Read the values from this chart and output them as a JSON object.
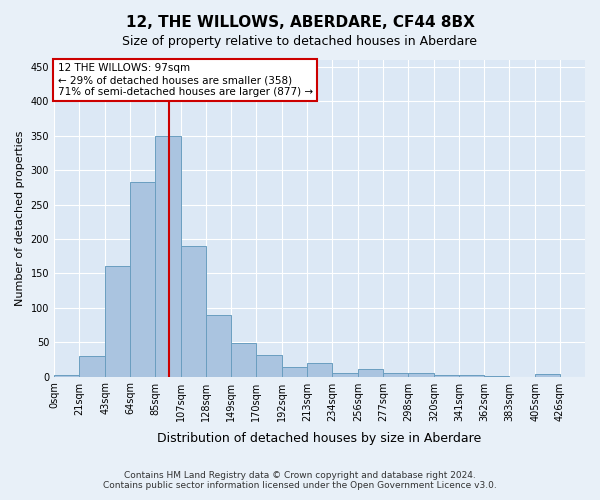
{
  "title": "12, THE WILLOWS, ABERDARE, CF44 8BX",
  "subtitle": "Size of property relative to detached houses in Aberdare",
  "xlabel": "Distribution of detached houses by size in Aberdare",
  "ylabel": "Number of detached properties",
  "footer_line1": "Contains HM Land Registry data © Crown copyright and database right 2024.",
  "footer_line2": "Contains public sector information licensed under the Open Government Licence v3.0.",
  "bar_labels": [
    "0sqm",
    "21sqm",
    "43sqm",
    "64sqm",
    "85sqm",
    "107sqm",
    "128sqm",
    "149sqm",
    "170sqm",
    "192sqm",
    "213sqm",
    "234sqm",
    "256sqm",
    "277sqm",
    "298sqm",
    "320sqm",
    "341sqm",
    "362sqm",
    "383sqm",
    "405sqm",
    "426sqm"
  ],
  "bin_edges": [
    0,
    21,
    43,
    64,
    85,
    107,
    128,
    149,
    170,
    192,
    213,
    234,
    256,
    277,
    298,
    320,
    341,
    362,
    383,
    405,
    426
  ],
  "bar_values": [
    2,
    30,
    160,
    283,
    350,
    190,
    90,
    49,
    31,
    14,
    20,
    5,
    11,
    5,
    5,
    2,
    2,
    1,
    0,
    3
  ],
  "bar_color": "#aac4e0",
  "bar_edge_color": "#6a9ec0",
  "property_line_x": 97,
  "property_line_label": "12 THE WILLOWS: 97sqm",
  "annotation_line1": "← 29% of detached houses are smaller (358)",
  "annotation_line2": "71% of semi-detached houses are larger (877) →",
  "annotation_box_color": "#ffffff",
  "annotation_box_edge_color": "#cc0000",
  "vline_color": "#cc0000",
  "ylim": [
    0,
    460
  ],
  "yticks": [
    0,
    50,
    100,
    150,
    200,
    250,
    300,
    350,
    400,
    450
  ],
  "bg_color": "#e8f0f8",
  "plot_bg_color": "#dce8f5",
  "grid_color": "#ffffff"
}
